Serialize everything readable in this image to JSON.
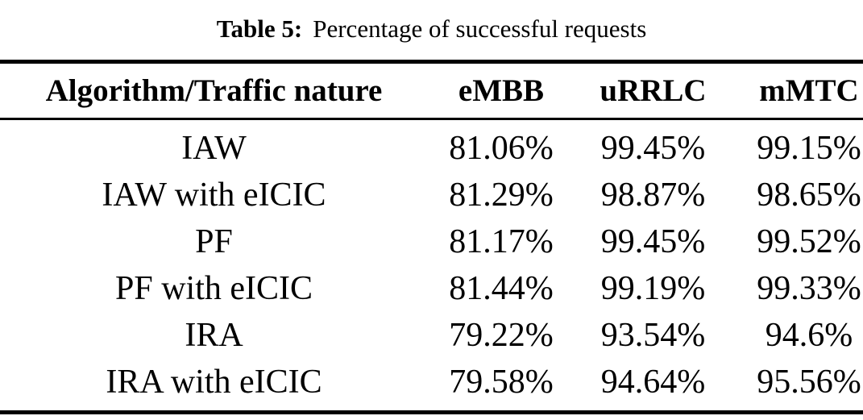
{
  "caption": {
    "label": "Table 5:",
    "text": "Percentage of successful requests"
  },
  "table": {
    "columns": [
      "Algorithm/Traffic nature",
      "eMBB",
      "uRRLC",
      "mMTC"
    ],
    "rows": [
      [
        "IAW",
        "81.06%",
        "99.45%",
        "99.15%"
      ],
      [
        "IAW with eICIC",
        "81.29%",
        "98.87%",
        "98.65%"
      ],
      [
        "PF",
        "81.17%",
        "99.45%",
        "99.52%"
      ],
      [
        "PF with eICIC",
        "81.44%",
        "99.19%",
        "99.33%"
      ],
      [
        "IRA",
        "79.22%",
        "93.54%",
        "94.6%"
      ],
      [
        "IRA with eICIC",
        "79.58%",
        "94.64%",
        "95.56%"
      ]
    ]
  },
  "colors": {
    "text": "#000000",
    "background": "#ffffff",
    "rule": "#000000"
  }
}
